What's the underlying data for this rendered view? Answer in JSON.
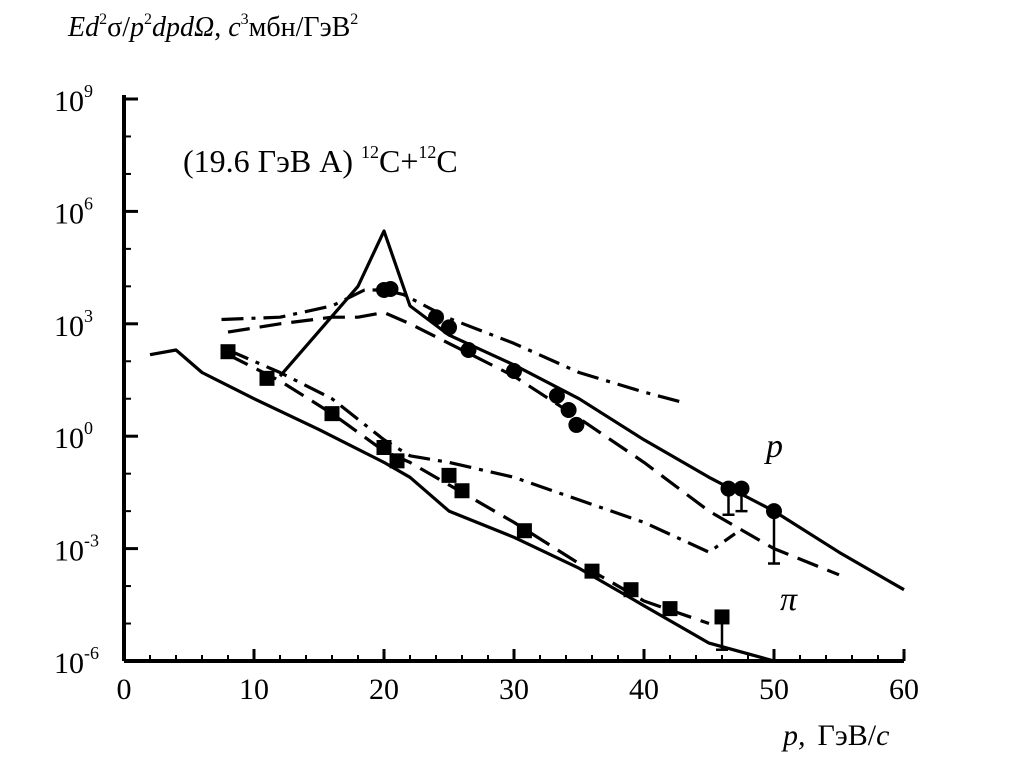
{
  "chart_data": {
    "type": "scatter",
    "ylabel": {
      "E": "Ed",
      "sup1": "2",
      "sigma": "σ/",
      "p": "p",
      "sup2": "2",
      "dpd": "dpdΩ",
      "comma": ", ",
      "c": "c",
      "sup3": "3",
      "unit": "мбн/ГэВ",
      "sup4": "2"
    },
    "xlabel": {
      "p": "p,",
      "unit": "ГэВ/",
      "c": "c"
    },
    "annotation": {
      "pre": "(19.6 ГэВ A) ",
      "sup1": "12",
      "mid": "C+",
      "sup2": "12",
      "post": "C"
    },
    "series_labels": {
      "proton": "p",
      "pion": "π"
    },
    "xlim": [
      0,
      60
    ],
    "ylim": [
      1e-06,
      1000000000.0
    ],
    "y_scale": "log",
    "x_ticks": [
      "0",
      "10",
      "20",
      "30",
      "40",
      "50",
      "60"
    ],
    "y_ticks": [
      {
        "base": "10",
        "exp": "9",
        "value": 1000000000.0
      },
      {
        "base": "10",
        "exp": "6",
        "value": 1000000.0
      },
      {
        "base": "10",
        "exp": "3",
        "value": 1000.0
      },
      {
        "base": "10",
        "exp": "0",
        "value": 1
      },
      {
        "base": "10",
        "exp": "-3",
        "value": 0.001
      },
      {
        "base": "10",
        "exp": "-6",
        "value": 1e-06
      }
    ],
    "series": [
      {
        "kind": "points",
        "marker": "circle",
        "x": [
          20,
          20.5,
          24,
          25,
          26.5,
          30,
          33.3,
          34.2,
          34.8,
          46.5,
          47.5,
          50
        ],
        "y": [
          8000,
          8500,
          1500,
          800,
          200,
          55,
          12,
          5,
          2,
          0.04,
          0.04,
          0.01
        ],
        "err_low": [
          null,
          null,
          null,
          null,
          null,
          null,
          null,
          null,
          null,
          0.008,
          0.01,
          0.0004
        ]
      },
      {
        "kind": "points",
        "marker": "square",
        "x": [
          8,
          11,
          16,
          20,
          21,
          25,
          26,
          30.8,
          36,
          39,
          42,
          46
        ],
        "y": [
          180,
          35,
          4,
          0.5,
          0.22,
          0.09,
          0.035,
          0.003,
          0.00025,
          8e-05,
          2.5e-05,
          1.5e-05
        ],
        "err_low": [
          null,
          null,
          null,
          null,
          null,
          null,
          null,
          null,
          null,
          null,
          null,
          2e-06
        ]
      },
      {
        "kind": "line",
        "style": "solid",
        "x": [
          12,
          18,
          20,
          22,
          25,
          30,
          35,
          40,
          45,
          50,
          55,
          58,
          60
        ],
        "y": [
          40,
          10000,
          300000,
          3000,
          500,
          80,
          10,
          0.8,
          0.08,
          0.01,
          0.0008,
          0.0002,
          8e-05
        ]
      },
      {
        "kind": "line",
        "style": "dashdot",
        "x": [
          7.5,
          12,
          16,
          18.5,
          20,
          21.5,
          25,
          30,
          35,
          40,
          43
        ],
        "y": [
          1300,
          1500,
          3000,
          8000,
          8000,
          6000,
          1400,
          300,
          50,
          15,
          8
        ]
      },
      {
        "kind": "line",
        "style": "dashed",
        "x": [
          8,
          12,
          16,
          18,
          20,
          22,
          25,
          30,
          35,
          40,
          45,
          50,
          55
        ],
        "y": [
          600,
          1000,
          1500,
          1500,
          2000,
          1000,
          300,
          40,
          3,
          0.2,
          0.01,
          0.001,
          0.0002
        ]
      },
      {
        "kind": "line",
        "style": "solid",
        "x": [
          2,
          4,
          6,
          10,
          15,
          20,
          22,
          25,
          30,
          35,
          40,
          45,
          50
        ],
        "y": [
          150,
          200,
          50,
          10,
          1.5,
          0.2,
          0.08,
          0.01,
          0.002,
          0.0003,
          3e-05,
          3e-06,
          1e-06
        ]
      },
      {
        "kind": "line",
        "style": "dashdot",
        "x": [
          8,
          12,
          16,
          20,
          22,
          25,
          30,
          35,
          40,
          45,
          47
        ],
        "y": [
          200,
          50,
          10,
          0.8,
          0.3,
          0.2,
          0.08,
          0.02,
          0.005,
          0.0008,
          0.0025
        ]
      },
      {
        "kind": "line",
        "style": "dashed",
        "x": [
          8,
          12,
          16,
          20,
          22,
          25,
          30,
          35,
          40,
          45
        ],
        "y": [
          150,
          30,
          4,
          0.4,
          0.2,
          0.05,
          0.005,
          0.0004,
          4e-05,
          1e-05
        ]
      }
    ]
  }
}
